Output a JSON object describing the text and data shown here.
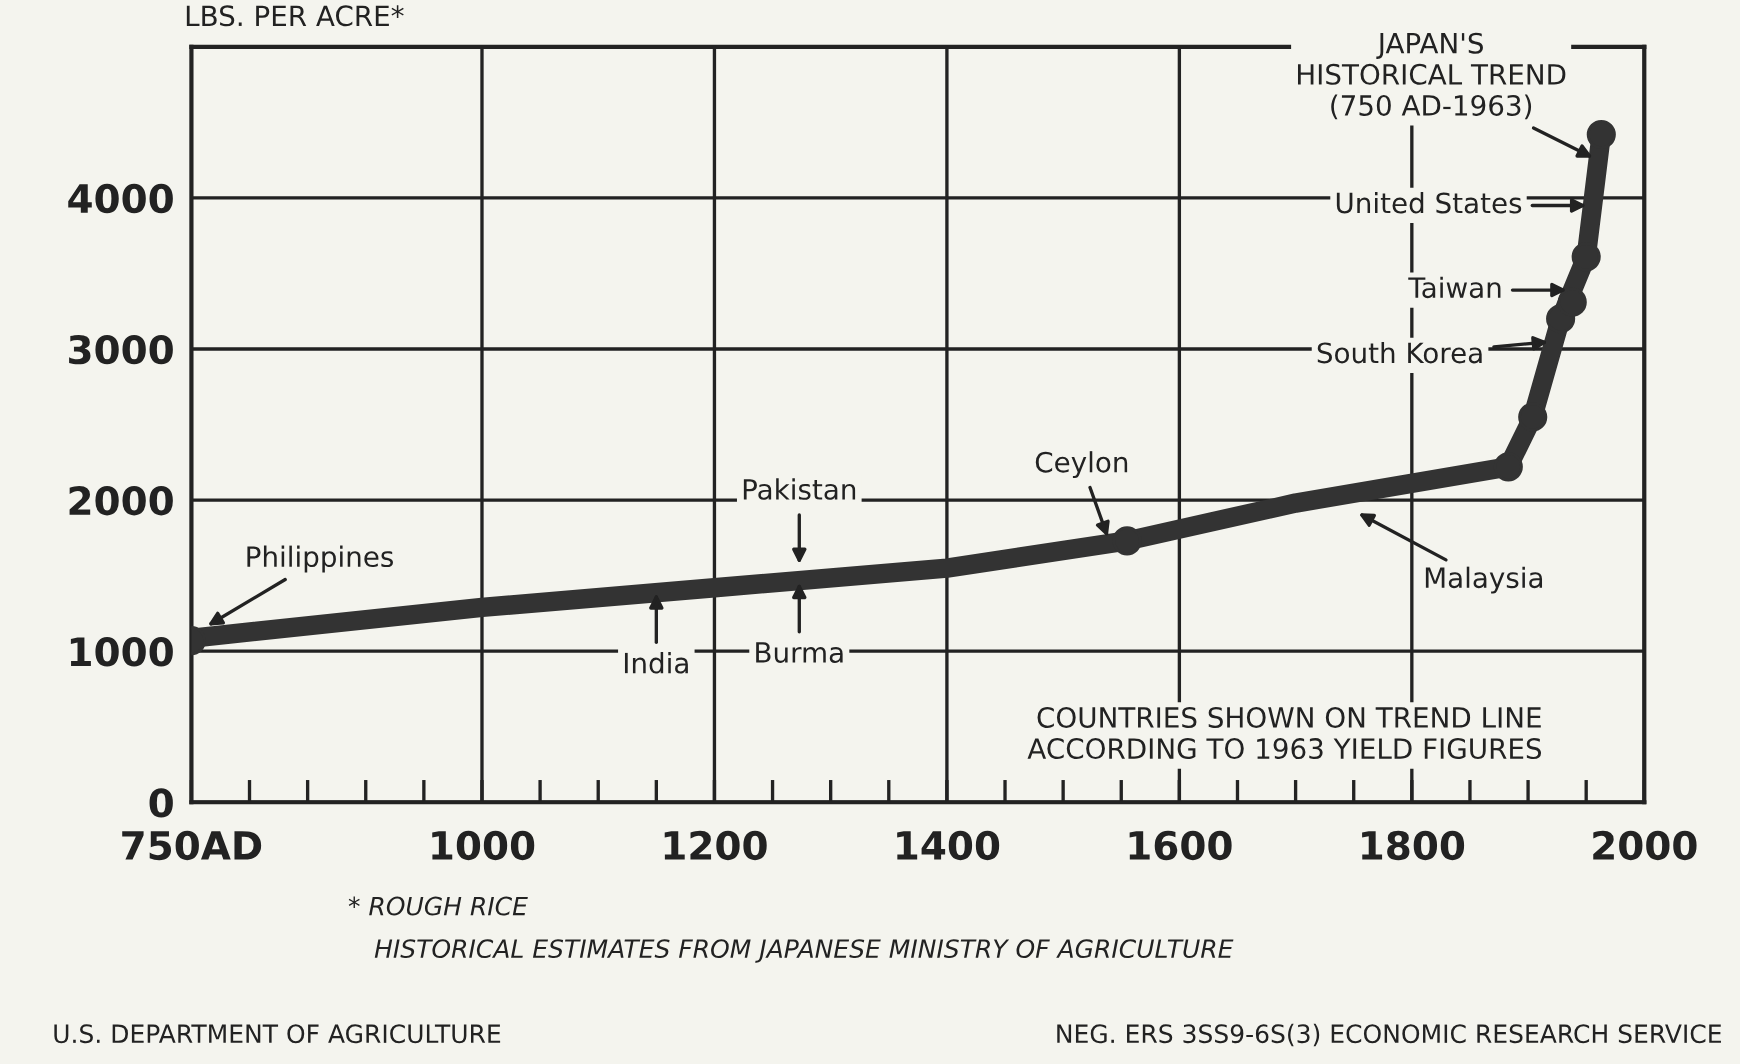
{
  "chart_data": {
    "type": "line",
    "ylabel": "LBS. PER ACRE*",
    "xlim": [
      750,
      2000
    ],
    "ylim": [
      0,
      5000
    ],
    "xticks": [
      {
        "value": 750,
        "label": "750AD"
      },
      {
        "value": 800,
        "label": null
      },
      {
        "value": 850,
        "label": null
      },
      {
        "value": 900,
        "label": null
      },
      {
        "value": 950,
        "label": null
      },
      1000,
      {
        "value": 1050,
        "label": null
      },
      {
        "value": 1100,
        "label": null
      },
      {
        "value": 1150,
        "label": null
      },
      1200,
      {
        "value": 1250,
        "label": null
      },
      {
        "value": 1300,
        "label": null
      },
      {
        "value": 1350,
        "label": null
      },
      1400,
      {
        "value": 1450,
        "label": null
      },
      {
        "value": 1500,
        "label": null
      },
      {
        "value": 1550,
        "label": null
      },
      1600,
      {
        "value": 1650,
        "label": null
      },
      {
        "value": 1700,
        "label": null
      },
      {
        "value": 1750,
        "label": null
      },
      1800,
      {
        "value": 1850,
        "label": null
      },
      {
        "value": 1900,
        "label": null
      },
      {
        "value": 1950,
        "label": null
      },
      2000
    ],
    "yticks": [
      0,
      1000,
      2000,
      3000,
      4000
    ],
    "grid": true,
    "series": [
      {
        "color": "#333333",
        "x": [
          755,
          1000,
          1200,
          1400,
          1555,
          1700,
          1883,
          1904,
          1928,
          1950,
          1963
        ],
        "values": [
          1090,
          1290,
          1420,
          1550,
          1730,
          1980,
          2220,
          2550,
          3200,
          3610,
          4420
        ]
      },
      {
        "type": "scatter",
        "marker": "circle",
        "color": "#333333",
        "x": [
          750,
          1555,
          1883,
          1904,
          1928,
          1938,
          1950,
          1963
        ],
        "values": [
          1070,
          1730,
          2220,
          2550,
          3200,
          3310,
          3610,
          4420
        ]
      }
    ],
    "annotations": [
      {
        "text": "Philippines",
        "x": 760,
        "y": 1150
      },
      {
        "text": "India",
        "x": 1150,
        "y": 1420
      },
      {
        "text": "Pakistan",
        "x": 1273,
        "y": 1540
      },
      {
        "text": "Burma",
        "x": 1273,
        "y": 1490
      },
      {
        "text": "Ceylon",
        "x": 1540,
        "y": 1720
      },
      {
        "text": "Malaysia",
        "x": 1750,
        "y": 1930
      },
      {
        "text": "South Korea",
        "x": 1922,
        "y": 3050
      },
      {
        "text": "Taiwan",
        "x": 1938,
        "y": 3390
      },
      {
        "text": "United States",
        "x": 1955,
        "y": 3950
      },
      {
        "text": "JAPAN'S\nHISTORICAL TREND\n(750 AD-1963)",
        "x": 1960,
        "y": 4250
      },
      "COUNTRIES SHOWN ON TREND LINE\nACCORDING TO 1963 YIELD FIGURES",
      "* ROUGH RICE",
      "HISTORICAL ESTIMATES FROM JAPANESE MINISTRY OF AGRICULTURE",
      "U.S. DEPARTMENT OF AGRICULTURE",
      "NEG. ERS 3SS9-6S(3) ECONOMIC RESEARCH SERVICE"
    ]
  }
}
